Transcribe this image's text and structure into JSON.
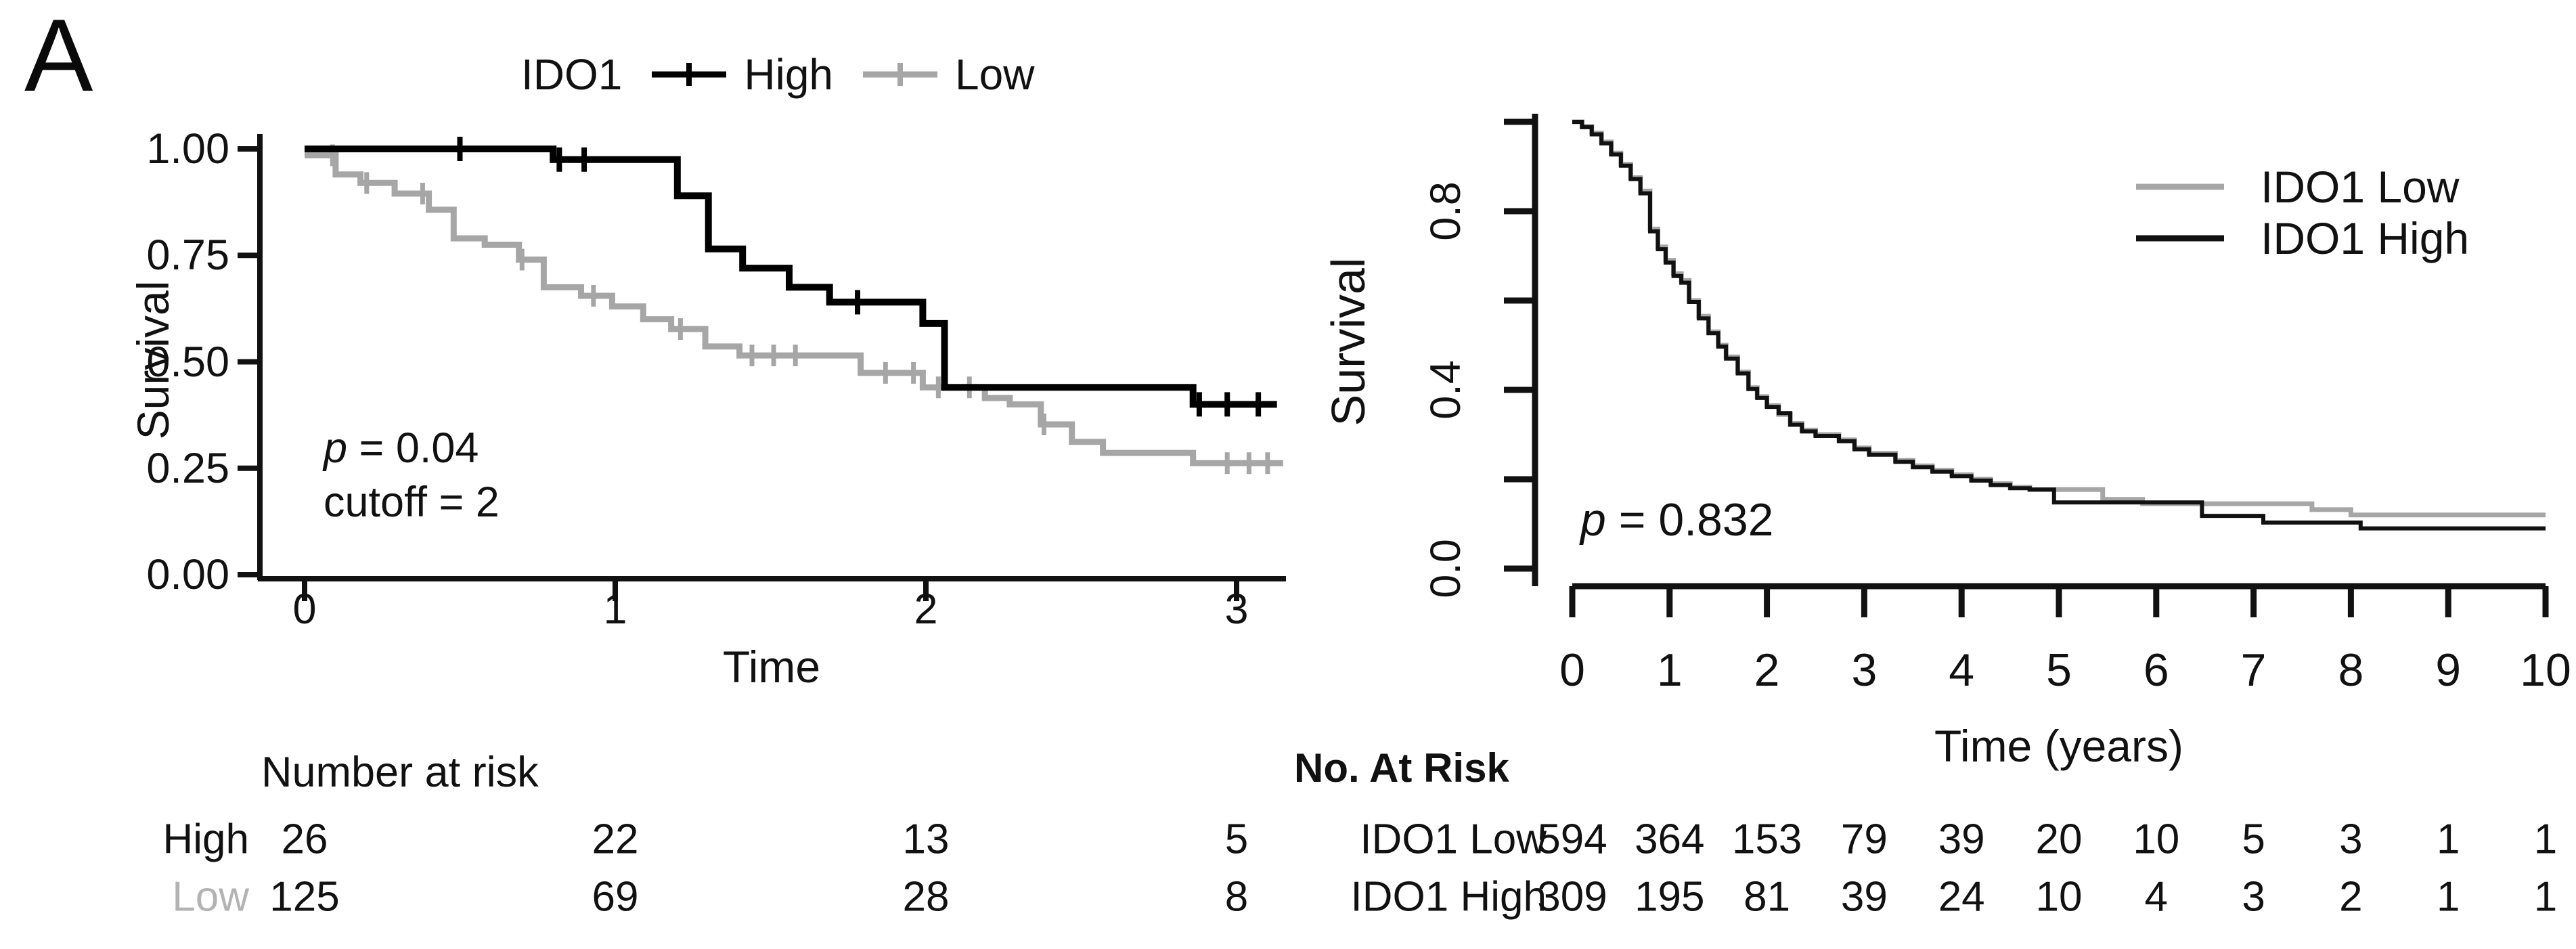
{
  "panel_label": "A",
  "colors": {
    "high": "#000000",
    "low": "#a6a6a6",
    "low_label": "#b3b3b3",
    "right_high": "#111111",
    "right_low": "#a6a6a6",
    "text": "#111111"
  },
  "left_plot": {
    "legend": {
      "title": "IDO1",
      "items": [
        {
          "label": "High",
          "color": "#000000"
        },
        {
          "label": "Low",
          "color": "#a6a6a6"
        }
      ]
    },
    "ylabel": "Survival",
    "xlabel": "Time",
    "ytick_labels": [
      "1.00",
      "0.75",
      "0.50",
      "0.25",
      "0.00"
    ],
    "xtick_labels": [
      "0",
      "1",
      "2",
      "3"
    ],
    "annotation": {
      "p_var": "p",
      "p_rest": " = 0.04",
      "line2": "cutoff = 2"
    },
    "risk_table": {
      "title": "Number at risk",
      "rows": [
        {
          "label": "High",
          "values": [
            "26",
            "22",
            "13",
            "5"
          ]
        },
        {
          "label": "Low",
          "values": [
            "125",
            "69",
            "28",
            "8"
          ]
        }
      ]
    }
  },
  "right_plot": {
    "legend": {
      "items": [
        {
          "label": "IDO1 Low",
          "color": "#a6a6a6"
        },
        {
          "label": "IDO1 High",
          "color": "#111111"
        }
      ]
    },
    "ylabel": "Survival",
    "xlabel": "Time (years)",
    "ytick_labels": [
      "0.8",
      "0.4",
      "0.0"
    ],
    "xtick_labels": [
      "0",
      "1",
      "2",
      "3",
      "4",
      "5",
      "6",
      "7",
      "8",
      "9",
      "10"
    ],
    "annotation": {
      "p_var": "p",
      "p_rest": " = 0.832"
    },
    "risk_table": {
      "title": "No. At Risk",
      "rows": [
        {
          "label": "IDO1 Low",
          "values": [
            "594",
            "364",
            "153",
            "79",
            "39",
            "20",
            "10",
            "5",
            "3",
            "1",
            "1"
          ]
        },
        {
          "label": "IDO1 High",
          "values": [
            "309",
            "195",
            "81",
            "39",
            "24",
            "10",
            "4",
            "3",
            "2",
            "1",
            "1"
          ]
        }
      ]
    }
  },
  "chart_data": [
    {
      "type": "line",
      "subtype": "kaplan-meier-step",
      "title": "",
      "xlabel": "Time",
      "ylabel": "Survival",
      "xlim": [
        0,
        3.15
      ],
      "ylim": [
        0,
        1
      ],
      "yticks": [
        1.0,
        0.75,
        0.5,
        0.25,
        0.0
      ],
      "xticks": [
        0,
        1,
        2,
        3
      ],
      "grid": false,
      "legend_position": "top",
      "annotations": [
        "p = 0.04",
        "cutoff = 2"
      ],
      "series": [
        {
          "name": "High",
          "color": "#000000",
          "steps": [
            [
              0,
              1.0
            ],
            [
              0.8,
              0.975
            ],
            [
              1.2,
              0.89
            ],
            [
              1.3,
              0.765
            ],
            [
              1.41,
              0.72
            ],
            [
              1.56,
              0.675
            ],
            [
              1.69,
              0.64
            ],
            [
              1.99,
              0.59
            ],
            [
              2.06,
              0.44
            ],
            [
              2.86,
              0.4
            ],
            [
              3.13,
              0.4
            ]
          ],
          "censors": [
            0.5,
            0.82,
            0.9,
            1.78,
            2.88,
            2.97,
            3.07
          ]
        },
        {
          "name": "Low",
          "color": "#a6a6a6",
          "steps": [
            [
              0,
              0.985
            ],
            [
              0.1,
              0.94
            ],
            [
              0.18,
              0.92
            ],
            [
              0.29,
              0.895
            ],
            [
              0.4,
              0.857
            ],
            [
              0.48,
              0.79
            ],
            [
              0.58,
              0.775
            ],
            [
              0.69,
              0.74
            ],
            [
              0.77,
              0.675
            ],
            [
              0.89,
              0.655
            ],
            [
              0.99,
              0.63
            ],
            [
              1.09,
              0.6
            ],
            [
              1.18,
              0.577
            ],
            [
              1.29,
              0.536
            ],
            [
              1.4,
              0.515
            ],
            [
              1.79,
              0.474
            ],
            [
              1.99,
              0.44
            ],
            [
              2.19,
              0.415
            ],
            [
              2.27,
              0.4
            ],
            [
              2.37,
              0.353
            ],
            [
              2.47,
              0.312
            ],
            [
              2.57,
              0.286
            ],
            [
              2.86,
              0.262
            ],
            [
              3.15,
              0.262
            ]
          ],
          "censors": [
            0.09,
            0.2,
            0.38,
            0.7,
            0.93,
            1.21,
            1.44,
            1.51,
            1.58,
            1.87,
            1.96,
            2.04,
            2.14,
            2.38,
            2.97,
            3.04,
            3.1
          ]
        }
      ],
      "number_at_risk": {
        "title": "Number at risk",
        "times": [
          0,
          1,
          2,
          3
        ],
        "rows": [
          {
            "name": "High",
            "values": [
              26,
              22,
              13,
              5
            ]
          },
          {
            "name": "Low",
            "values": [
              125,
              69,
              28,
              8
            ]
          }
        ]
      }
    },
    {
      "type": "line",
      "subtype": "kaplan-meier-step",
      "title": "",
      "xlabel": "Time (years)",
      "ylabel": "Survival",
      "xlim": [
        0,
        10
      ],
      "ylim": [
        0,
        1
      ],
      "yticks": [
        1.0,
        0.8,
        0.6,
        0.4,
        0.2,
        0.0
      ],
      "ytick_labeled": [
        0.8,
        0.4,
        0.0
      ],
      "xticks": [
        0,
        1,
        2,
        3,
        4,
        5,
        6,
        7,
        8,
        9,
        10
      ],
      "grid": false,
      "legend_position": "top-right",
      "annotations": [
        "p = 0.832"
      ],
      "series": [
        {
          "name": "IDO1 Low",
          "color": "#a6a6a6",
          "steps": [
            [
              0,
              1.0
            ],
            [
              0.1,
              0.99
            ],
            [
              0.2,
              0.975
            ],
            [
              0.3,
              0.955
            ],
            [
              0.4,
              0.93
            ],
            [
              0.5,
              0.905
            ],
            [
              0.6,
              0.875
            ],
            [
              0.7,
              0.845
            ],
            [
              0.8,
              0.76
            ],
            [
              0.88,
              0.72
            ],
            [
              0.96,
              0.69
            ],
            [
              1.04,
              0.66
            ],
            [
              1.12,
              0.645
            ],
            [
              1.2,
              0.6
            ],
            [
              1.3,
              0.565
            ],
            [
              1.4,
              0.53
            ],
            [
              1.5,
              0.5
            ],
            [
              1.58,
              0.474
            ],
            [
              1.7,
              0.44
            ],
            [
              1.81,
              0.405
            ],
            [
              1.9,
              0.385
            ],
            [
              2.0,
              0.365
            ],
            [
              2.12,
              0.345
            ],
            [
              2.24,
              0.325
            ],
            [
              2.36,
              0.31
            ],
            [
              2.5,
              0.3
            ],
            [
              2.74,
              0.288
            ],
            [
              2.9,
              0.27
            ],
            [
              3.05,
              0.258
            ],
            [
              3.32,
              0.242
            ],
            [
              3.5,
              0.23
            ],
            [
              3.7,
              0.22
            ],
            [
              3.9,
              0.21
            ],
            [
              4.1,
              0.2
            ],
            [
              4.3,
              0.19
            ],
            [
              4.5,
              0.182
            ],
            [
              4.7,
              0.177
            ],
            [
              5.45,
              0.155
            ],
            [
              5.86,
              0.145
            ],
            [
              7.6,
              0.132
            ],
            [
              8.0,
              0.12
            ],
            [
              10,
              0.12
            ]
          ],
          "censors": []
        },
        {
          "name": "IDO1 High",
          "color": "#111111",
          "steps": [
            [
              0,
              1.0
            ],
            [
              0.1,
              0.988
            ],
            [
              0.2,
              0.972
            ],
            [
              0.3,
              0.952
            ],
            [
              0.4,
              0.927
            ],
            [
              0.5,
              0.902
            ],
            [
              0.6,
              0.872
            ],
            [
              0.7,
              0.84
            ],
            [
              0.8,
              0.755
            ],
            [
              0.88,
              0.715
            ],
            [
              0.96,
              0.685
            ],
            [
              1.04,
              0.655
            ],
            [
              1.12,
              0.64
            ],
            [
              1.2,
              0.597
            ],
            [
              1.3,
              0.56
            ],
            [
              1.4,
              0.527
            ],
            [
              1.5,
              0.497
            ],
            [
              1.58,
              0.47
            ],
            [
              1.7,
              0.437
            ],
            [
              1.81,
              0.402
            ],
            [
              1.9,
              0.382
            ],
            [
              2.0,
              0.362
            ],
            [
              2.12,
              0.348
            ],
            [
              2.24,
              0.322
            ],
            [
              2.36,
              0.307
            ],
            [
              2.5,
              0.297
            ],
            [
              2.74,
              0.285
            ],
            [
              2.9,
              0.267
            ],
            [
              3.05,
              0.255
            ],
            [
              3.32,
              0.239
            ],
            [
              3.5,
              0.227
            ],
            [
              3.7,
              0.217
            ],
            [
              3.9,
              0.207
            ],
            [
              4.1,
              0.197
            ],
            [
              4.3,
              0.187
            ],
            [
              4.5,
              0.18
            ],
            [
              4.7,
              0.177
            ],
            [
              4.95,
              0.148
            ],
            [
              6.47,
              0.118
            ],
            [
              7.1,
              0.103
            ],
            [
              8.1,
              0.09
            ],
            [
              10,
              0.09
            ]
          ],
          "censors": []
        }
      ],
      "number_at_risk": {
        "title": "No. At Risk",
        "times": [
          0,
          1,
          2,
          3,
          4,
          5,
          6,
          7,
          8,
          9,
          10
        ],
        "rows": [
          {
            "name": "IDO1 Low",
            "values": [
              594,
              364,
              153,
              79,
              39,
              20,
              10,
              5,
              3,
              1,
              1
            ]
          },
          {
            "name": "IDO1 High",
            "values": [
              309,
              195,
              81,
              39,
              24,
              10,
              4,
              3,
              2,
              1,
              1
            ]
          }
        ]
      }
    }
  ]
}
